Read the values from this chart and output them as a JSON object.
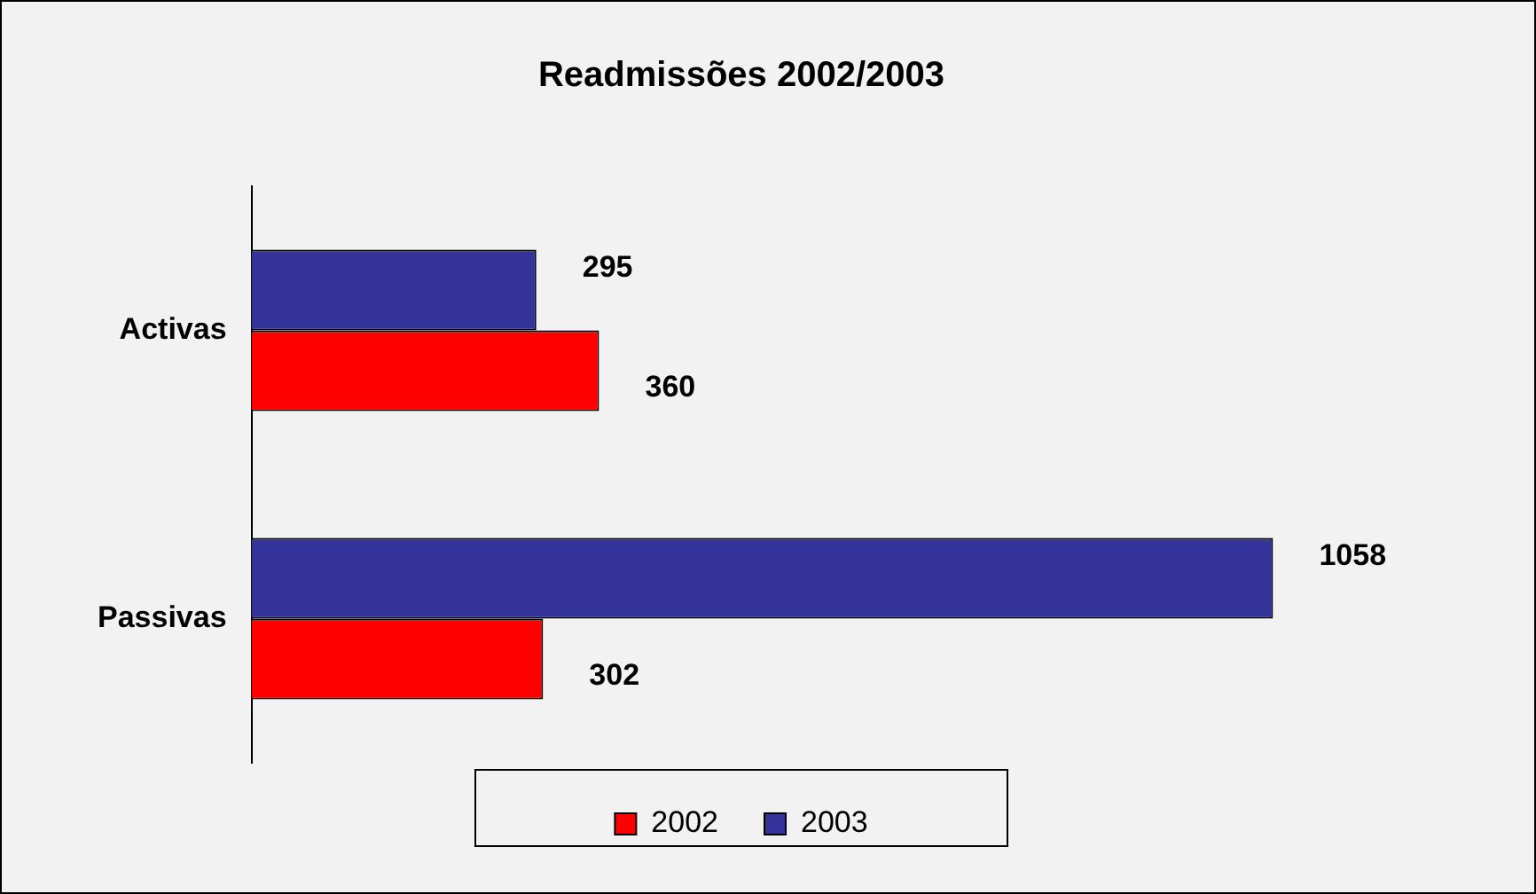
{
  "chart_data": {
    "type": "bar",
    "orientation": "horizontal",
    "title": "Readmissões 2002/2003",
    "categories": [
      "Activas",
      "Passivas"
    ],
    "series": [
      {
        "name": "2003",
        "color": "#333399",
        "values": [
          295,
          1058
        ]
      },
      {
        "name": "2002",
        "color": "#ff0000",
        "values": [
          360,
          302
        ]
      }
    ],
    "data_labels": true,
    "legend": "bottom"
  }
}
